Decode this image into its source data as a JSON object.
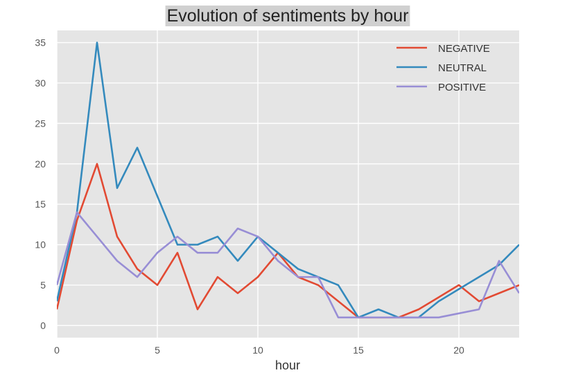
{
  "chart_data": {
    "type": "line",
    "title": "Evolution of sentiments by hour",
    "xlabel": "hour",
    "ylabel": "",
    "xlim": [
      0,
      23
    ],
    "ylim": [
      -1.5,
      36.5
    ],
    "xticks": [
      0,
      5,
      10,
      15,
      20
    ],
    "yticks": [
      0,
      5,
      10,
      15,
      20,
      25,
      30,
      35
    ],
    "grid": true,
    "legend_position": "top-right",
    "x": [
      0,
      1,
      2,
      3,
      4,
      5,
      6,
      7,
      8,
      9,
      10,
      11,
      12,
      13,
      14,
      15,
      16,
      17,
      18,
      19,
      20,
      21,
      22,
      23
    ],
    "series": [
      {
        "name": "NEGATIVE",
        "color": "#e24a33",
        "values": [
          2,
          13,
          20,
          11,
          7,
          5,
          9,
          2,
          6,
          4,
          6,
          9,
          6,
          5,
          3,
          1,
          1,
          1,
          2,
          3.5,
          5,
          3,
          4,
          5
        ]
      },
      {
        "name": "NEUTRAL",
        "color": "#348abd",
        "values": [
          3,
          14,
          35,
          17,
          22,
          16,
          10,
          10,
          11,
          8,
          11,
          9,
          7,
          6,
          5,
          1,
          2,
          1,
          1,
          3,
          4.5,
          6,
          7.5,
          10
        ]
      },
      {
        "name": "POSITIVE",
        "color": "#988ed5",
        "values": [
          5,
          14,
          11,
          8,
          6,
          9,
          11,
          9,
          9,
          12,
          11,
          8,
          6,
          6,
          1,
          1,
          1,
          1,
          1,
          1,
          1.5,
          2,
          8,
          4
        ]
      }
    ]
  },
  "colors": {
    "plot_background": "#e5e5e5",
    "grid": "#ffffff",
    "title_background": "#d0d0d0"
  }
}
